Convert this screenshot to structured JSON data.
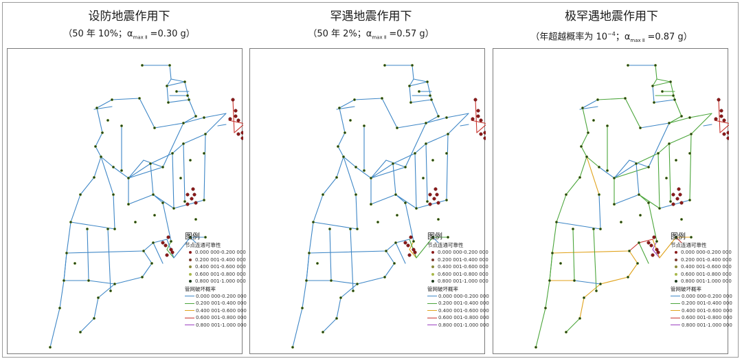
{
  "panels": [
    {
      "title": "设防地震作用下",
      "subtitle": "（50 年 10%；α",
      "subtitle_sub": "max Ⅱ",
      "subtitle_end": " =0.30 g）",
      "seg_colors": [
        "b",
        "b",
        "b",
        "b",
        "b",
        "b",
        "b",
        "b",
        "b",
        "b",
        "b",
        "b",
        "b",
        "b",
        "b",
        "b",
        "b",
        "b",
        "b",
        "b",
        "b",
        "b",
        "b",
        "b",
        "b",
        "b",
        "b",
        "b",
        "b",
        "b",
        "b",
        "b",
        "b",
        "b",
        "b",
        "b",
        "b",
        "b",
        "b",
        "b",
        "b",
        "b",
        "b",
        "b",
        "b",
        "b",
        "b",
        "b",
        "b",
        "b",
        "b",
        "b",
        "b",
        "b",
        "b",
        "b",
        "b",
        "b",
        "b",
        "b",
        "b",
        "b",
        "b",
        "b",
        "b",
        "g",
        "g",
        "b",
        "b",
        "b",
        "b",
        "b",
        "b",
        "b",
        "b"
      ],
      "red_nodes": [
        0,
        1,
        2,
        3,
        4,
        5,
        6,
        7,
        8,
        9,
        10,
        11,
        12,
        13,
        14
      ]
    },
    {
      "title": "罕遇地震作用下",
      "subtitle": "（50 年 2%；α",
      "subtitle_sub": "max Ⅱ",
      "subtitle_end": " =0.57 g）",
      "seg_colors": [
        "b",
        "b",
        "b",
        "b",
        "b",
        "b",
        "b",
        "b",
        "b",
        "b",
        "b",
        "b",
        "b",
        "b",
        "b",
        "b",
        "b",
        "b",
        "b",
        "b",
        "b",
        "b",
        "b",
        "b",
        "b",
        "b",
        "b",
        "b",
        "b",
        "b",
        "b",
        "b",
        "b",
        "b",
        "b",
        "b",
        "b",
        "b",
        "b",
        "b",
        "b",
        "b",
        "b",
        "b",
        "b",
        "b",
        "b",
        "b",
        "b",
        "b",
        "b",
        "b",
        "b",
        "b",
        "b",
        "b",
        "b",
        "b",
        "b",
        "b",
        "b",
        "b",
        "b",
        "b",
        "b",
        "o",
        "o",
        "g",
        "g",
        "g",
        "b",
        "b",
        "b",
        "b",
        "b"
      ],
      "red_nodes": [
        0,
        1,
        2,
        3,
        4,
        5,
        6,
        7,
        8,
        9,
        10,
        11,
        12,
        13,
        14
      ]
    },
    {
      "title": "极罕遇地震作用下",
      "subtitle": "（年超越概率为 10",
      "subtitle_sup": "−4",
      "subtitle_mid": "；α",
      "subtitle_sub": "max Ⅱ",
      "subtitle_end": " =0.87 g）",
      "seg_colors": [
        "b",
        "g",
        "g",
        "g",
        "b",
        "b",
        "g",
        "g",
        "g",
        "g",
        "g",
        "g",
        "b",
        "g",
        "g",
        "b",
        "g",
        "g",
        "g",
        "g",
        "b",
        "g",
        "b",
        "g",
        "g",
        "g",
        "g",
        "g",
        "g",
        "b",
        "b",
        "b",
        "g",
        "g",
        "g",
        "b",
        "g",
        "g",
        "g",
        "g",
        "g",
        "g",
        "g",
        "g",
        "g",
        "b",
        "b",
        "o",
        "o",
        "o",
        "o",
        "o",
        "o",
        "o",
        "g",
        "g",
        "g",
        "o",
        "g",
        "b",
        "b",
        "b",
        "g",
        "g",
        "g",
        "p",
        "p",
        "o",
        "o",
        "o",
        "r",
        "r",
        "r",
        "g",
        "g"
      ],
      "red_nodes": [
        0,
        1,
        2,
        3,
        4,
        5,
        6,
        7,
        8,
        9,
        10,
        11,
        12,
        13,
        14
      ]
    }
  ],
  "legend": {
    "title": "图例",
    "node_title": "节点连通可靠性",
    "node_ranges": [
      "0.000 000-0.200 000",
      "0.200 001-0.400 000",
      "0.400 001-0.600 000",
      "0.600 001-0.800 000",
      "0.800 001-1.000 000"
    ],
    "node_colors": [
      "#8b1a1a",
      "#7a3a2e",
      "#8a8a3a",
      "#a8b84a",
      "#1f3d1f"
    ],
    "pipe_title": "管网破坏概率",
    "pipe_ranges": [
      "0.000 000-0.200 000",
      "0.200 001-0.400 000",
      "0.400 001-0.600 000",
      "0.600 001-0.800 000",
      "0.800 001-1.000 000"
    ],
    "pipe_colors": [
      "#3d86c6",
      "#4aa53a",
      "#e0a21a",
      "#c8302a",
      "#9b3fc0"
    ]
  }
}
